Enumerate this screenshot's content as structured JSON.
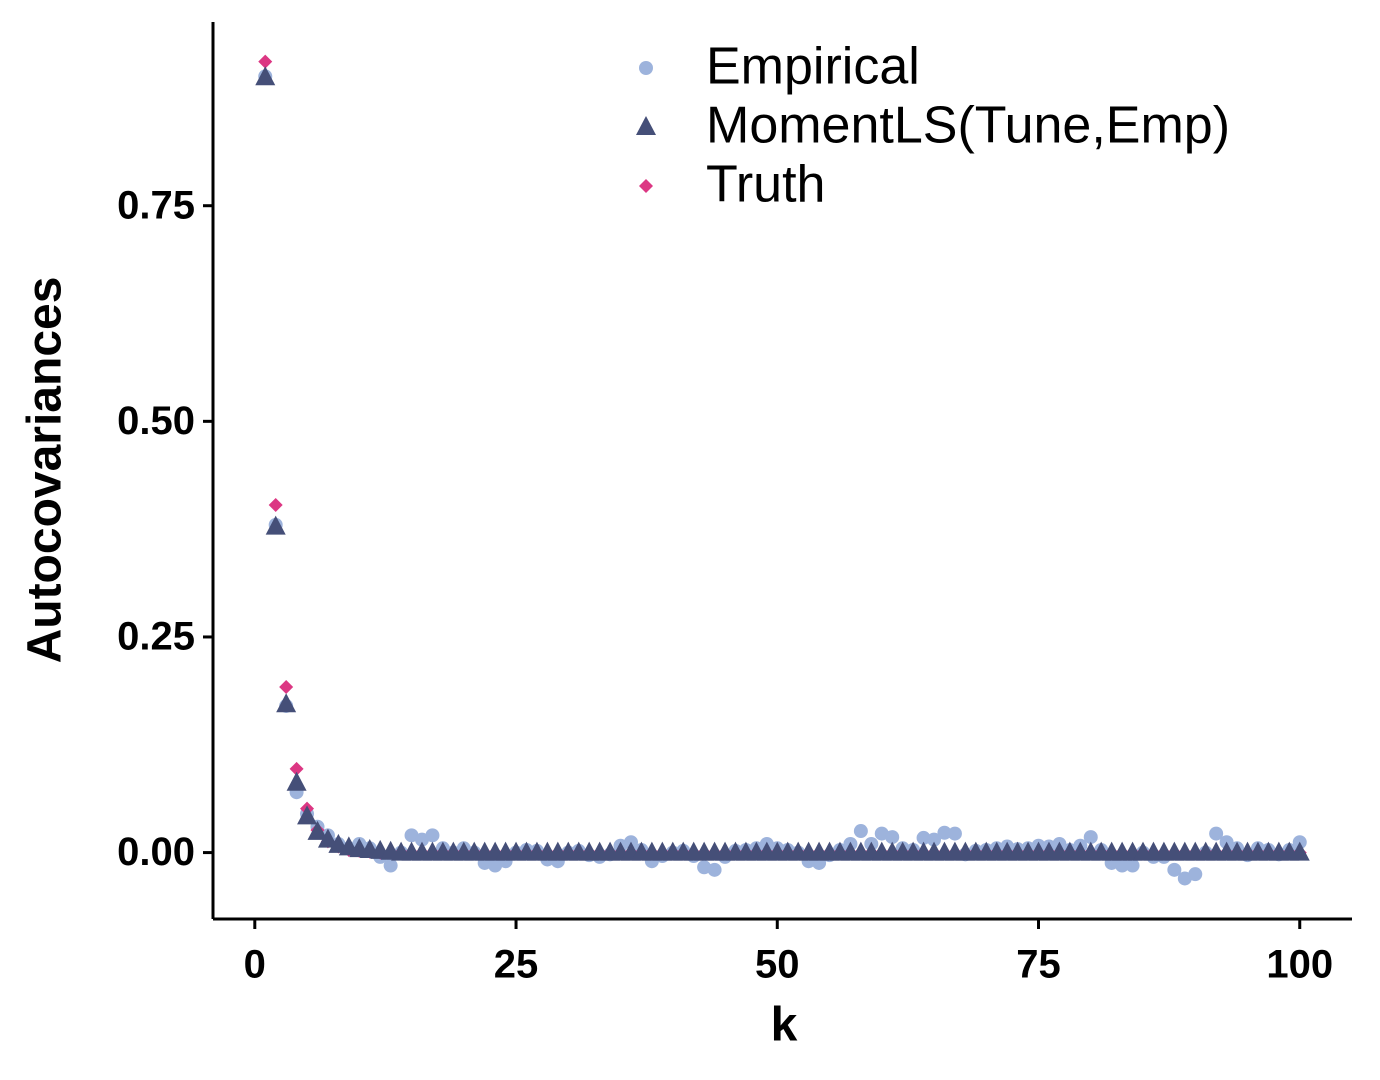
{
  "chart_data": {
    "type": "scatter",
    "x_label": "k",
    "y_label": "Autocovariances",
    "x": [
      1,
      2,
      3,
      4,
      5,
      6,
      7,
      8,
      9,
      10,
      11,
      12,
      13,
      14,
      15,
      16,
      17,
      18,
      19,
      20,
      21,
      22,
      23,
      24,
      25,
      26,
      27,
      28,
      29,
      30,
      31,
      32,
      33,
      34,
      35,
      36,
      37,
      38,
      39,
      40,
      41,
      42,
      43,
      44,
      45,
      46,
      47,
      48,
      49,
      50,
      51,
      52,
      53,
      54,
      55,
      56,
      57,
      58,
      59,
      60,
      61,
      62,
      63,
      64,
      65,
      66,
      67,
      68,
      69,
      70,
      71,
      72,
      73,
      74,
      75,
      76,
      77,
      78,
      79,
      80,
      81,
      82,
      83,
      84,
      85,
      86,
      87,
      88,
      89,
      90,
      91,
      92,
      93,
      94,
      95,
      96,
      97,
      98,
      99,
      100
    ],
    "series": [
      {
        "name": "Empirical",
        "color": "#9db3dc",
        "shape": "circle",
        "values": [
          0.9,
          0.38,
          0.17,
          0.07,
          0.045,
          0.03,
          0.02,
          0.01,
          0.005,
          0.01,
          0.005,
          -0.005,
          -0.015,
          0,
          0.02,
          0.015,
          0.02,
          0.005,
          0,
          0.005,
          0,
          -0.012,
          -0.015,
          -0.01,
          0,
          0.003,
          0.002,
          -0.008,
          -0.01,
          0,
          0.002,
          -0.003,
          -0.005,
          -0.002,
          0.008,
          0.012,
          0.003,
          -0.01,
          -0.004,
          0,
          0.002,
          -0.004,
          -0.017,
          -0.02,
          -0.005,
          0.002,
          0.003,
          0.005,
          0.01,
          0.005,
          0.003,
          0,
          -0.01,
          -0.012,
          -0.003,
          0.003,
          0.01,
          0.025,
          0.01,
          0.022,
          0.018,
          0.005,
          0.003,
          0.017,
          0.015,
          0.023,
          0.022,
          -0.002,
          0.002,
          0.003,
          0.005,
          0.007,
          0.004,
          0.005,
          0.008,
          0.007,
          0.01,
          0.003,
          0.008,
          0.018,
          0.003,
          -0.012,
          -0.015,
          -0.015,
          0,
          -0.005,
          -0.005,
          -0.02,
          -0.03,
          -0.025,
          0,
          0.022,
          0.012,
          0.005,
          -0.003,
          0.005,
          0.003,
          -0.002,
          0.003,
          0.012
        ]
      },
      {
        "name": "MomentLS(Tune,Emp)",
        "color": "#454f78",
        "shape": "triangle",
        "values": [
          0.899,
          0.378,
          0.172,
          0.081,
          0.042,
          0.024,
          0.015,
          0.009,
          0.006,
          0.004,
          0.003,
          0.002,
          0.001,
          0,
          0,
          0,
          0,
          0,
          0,
          0,
          0,
          0,
          0,
          0,
          0,
          0,
          0,
          0,
          0,
          0,
          0,
          0,
          0,
          0,
          0,
          0,
          0,
          0,
          0,
          0,
          0,
          0,
          0,
          0,
          0,
          0,
          0,
          0,
          0,
          0,
          0,
          0,
          0,
          0,
          0,
          0,
          0,
          0,
          0,
          0,
          0,
          0,
          0,
          0,
          0,
          0,
          0,
          0,
          0,
          0,
          0,
          0,
          0,
          0,
          0,
          0,
          0,
          0,
          0,
          0,
          0,
          0,
          0,
          0,
          0,
          0,
          0,
          0,
          0,
          0,
          0,
          0,
          0,
          0,
          0,
          0,
          0,
          0,
          0,
          0
        ]
      },
      {
        "name": "Truth",
        "color": "#dc3783",
        "shape": "diamond",
        "values": [
          0.917,
          0.403,
          0.192,
          0.097,
          0.051,
          0.026,
          0.013,
          0.007,
          0.003,
          0.002,
          0.001,
          0,
          0,
          0,
          0,
          0,
          0,
          0,
          0,
          0,
          0,
          0,
          0,
          0,
          0,
          0,
          0,
          0,
          0,
          0,
          0,
          0,
          0,
          0,
          0,
          0,
          0,
          0,
          0,
          0,
          0,
          0,
          0,
          0,
          0,
          0,
          0,
          0,
          0,
          0,
          0,
          0,
          0,
          0,
          0,
          0,
          0,
          0,
          0,
          0,
          0,
          0,
          0,
          0,
          0,
          0,
          0,
          0,
          0,
          0,
          0,
          0,
          0,
          0,
          0,
          0,
          0,
          0,
          0,
          0,
          0,
          0,
          0,
          0,
          0,
          0,
          0,
          0,
          0,
          0,
          0,
          0,
          0,
          0,
          0,
          0,
          0,
          0,
          0,
          0
        ]
      }
    ],
    "xlim": [
      -4,
      105
    ],
    "ylim": [
      -0.077,
      0.963
    ],
    "xticks": [
      0,
      25,
      50,
      75,
      100
    ],
    "yticks": [
      {
        "value": 0,
        "label": "0.00"
      },
      {
        "value": 0.25,
        "label": "0.25"
      },
      {
        "value": 0.5,
        "label": "0.50"
      },
      {
        "value": 0.75,
        "label": "0.75"
      }
    ],
    "grid": false,
    "legend_position": "top-right"
  }
}
